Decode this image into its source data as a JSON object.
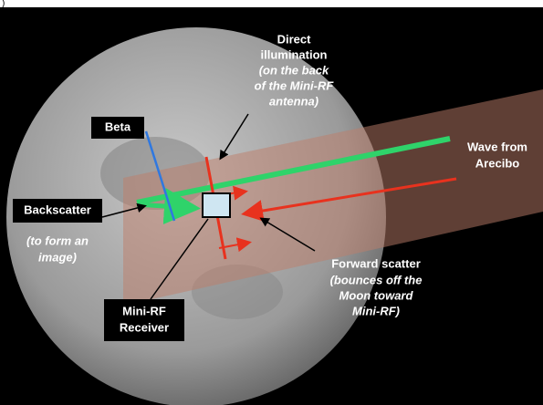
{
  "fragment": ")",
  "labels": {
    "direct_illumination": {
      "heading": [
        "Direct",
        "illumination"
      ],
      "note": [
        "(on the back",
        "of the Mini-RF",
        "antenna)"
      ]
    },
    "beta": "Beta",
    "wave": [
      "Wave from",
      "Arecibo"
    ],
    "backscatter": {
      "heading": "Backscatter",
      "note": [
        "(to form an",
        "image)"
      ]
    },
    "forward_scatter": {
      "heading": "Forward scatter",
      "note": [
        "(bounces off the",
        "Moon toward",
        "Mini-RF)"
      ]
    },
    "receiver": [
      "Mini-RF",
      "Receiver"
    ]
  }
}
